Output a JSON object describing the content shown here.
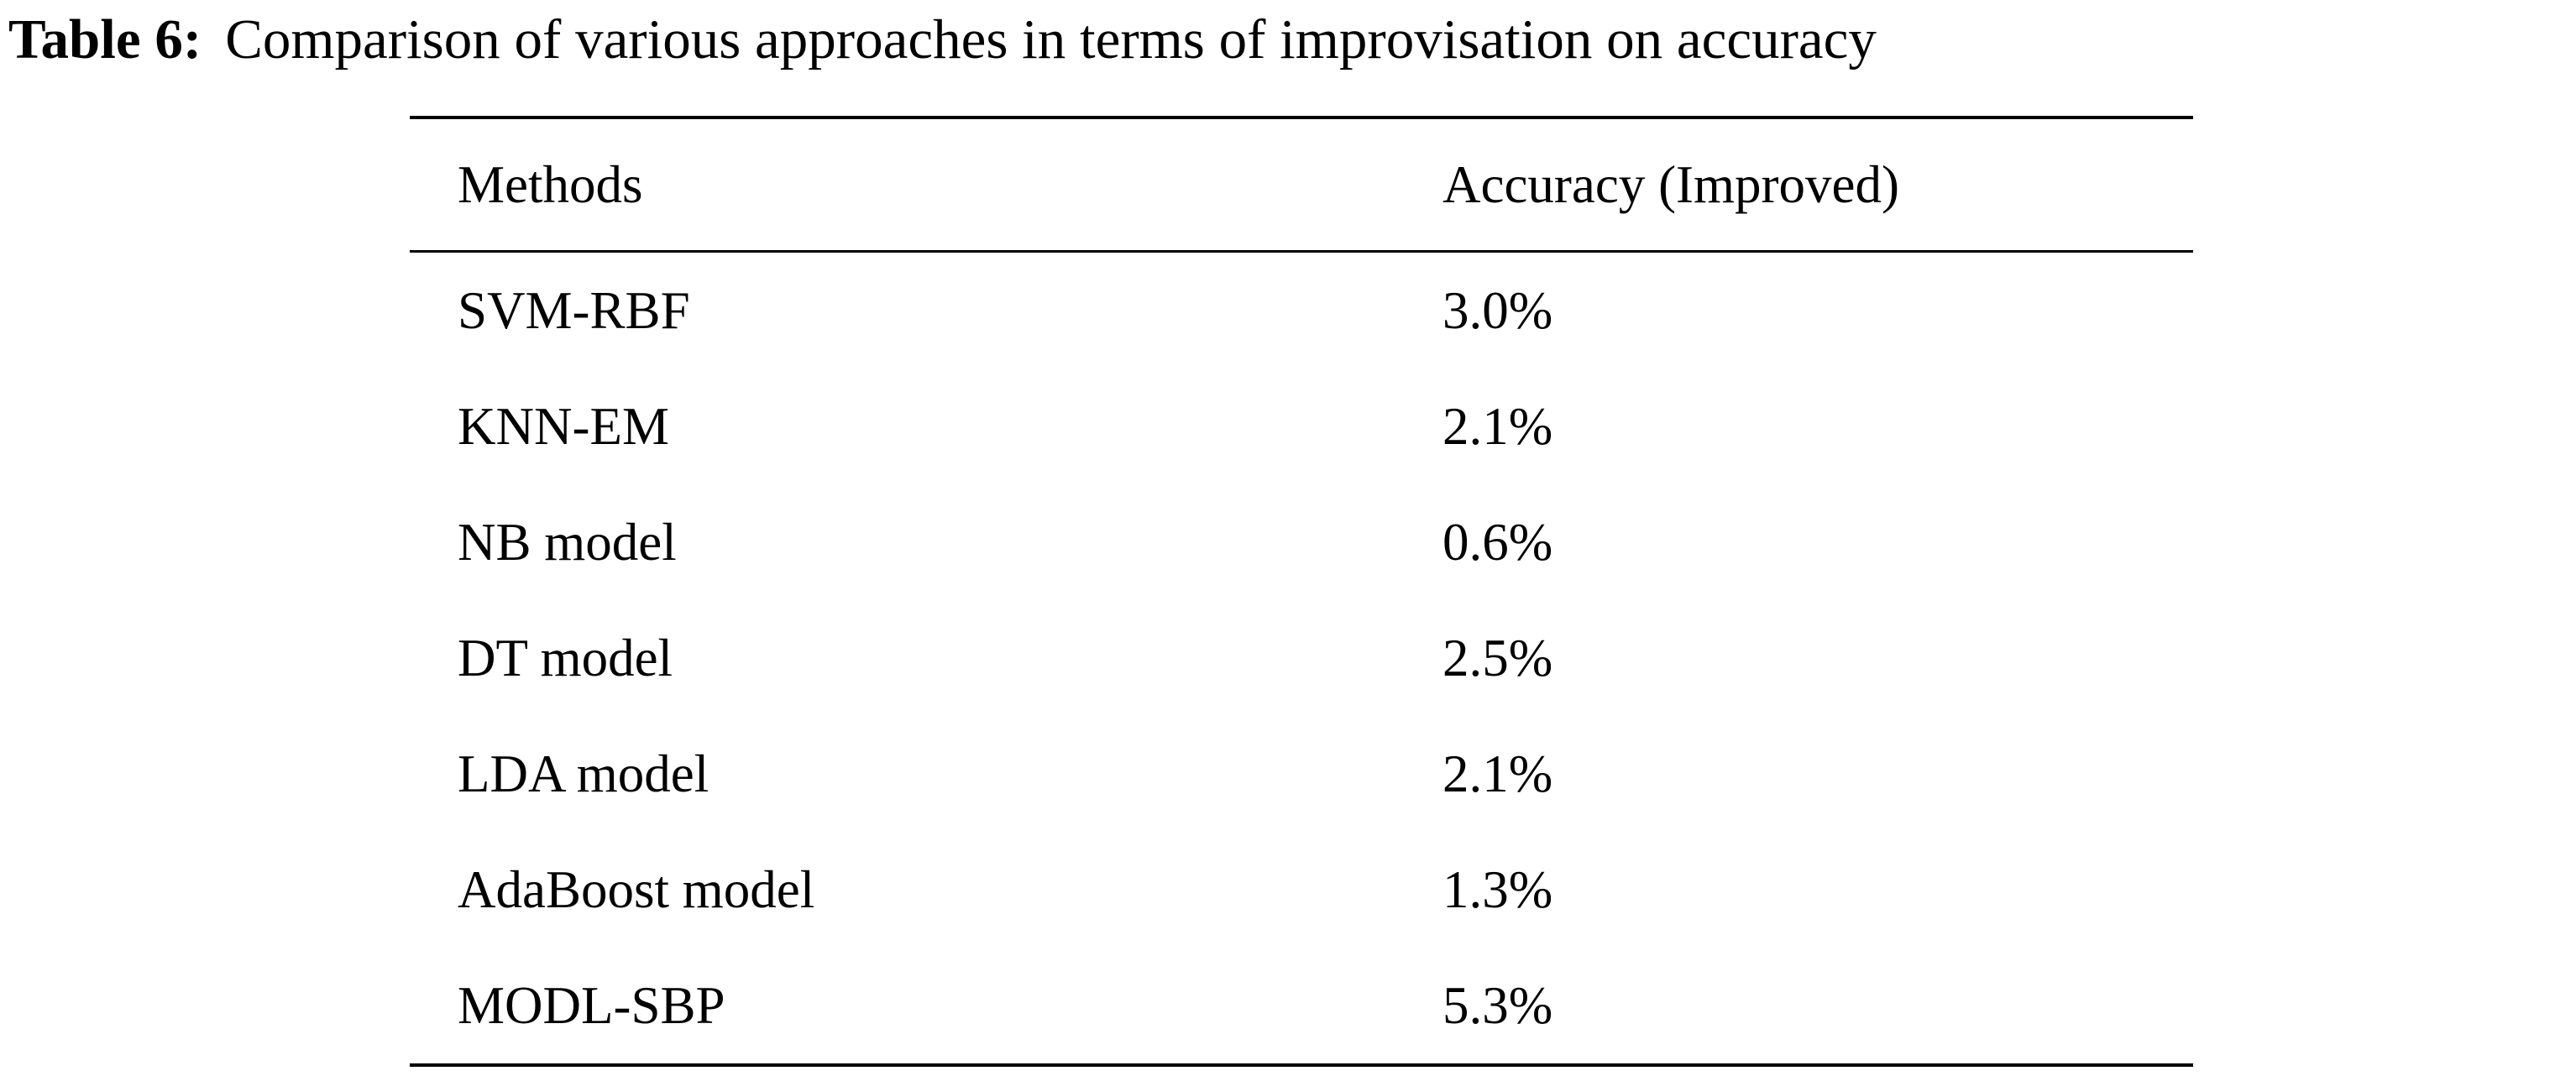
{
  "caption": {
    "label": "Table 6:",
    "text": "Comparison of various approaches in terms of improvisation on accuracy"
  },
  "table": {
    "headers": {
      "method": "Methods",
      "accuracy": "Accuracy (Improved)"
    },
    "rows": [
      {
        "method": "SVM-RBF",
        "accuracy": "3.0%"
      },
      {
        "method": "KNN-EM",
        "accuracy": "2.1%"
      },
      {
        "method": "NB model",
        "accuracy": "0.6%"
      },
      {
        "method": "DT model",
        "accuracy": "2.5%"
      },
      {
        "method": "LDA model",
        "accuracy": "2.1%"
      },
      {
        "method": "AdaBoost model",
        "accuracy": "1.3%"
      },
      {
        "method": "MODL-SBP",
        "accuracy": "5.3%"
      }
    ]
  }
}
